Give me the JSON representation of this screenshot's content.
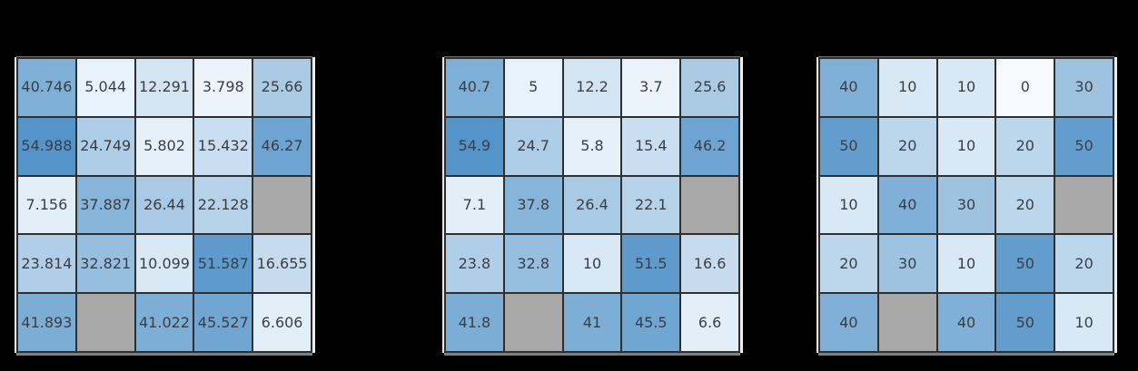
{
  "page": {
    "background": "#000000"
  },
  "colorscale": {
    "min_color": "#f7fbff",
    "max_color": "#5494c8",
    "vmin": 0,
    "vmax": 55,
    "nan_color": "#a8a8a8",
    "gridline_color": "#2f2f2f",
    "text_color": "#3a3e45"
  },
  "heatmaps": [
    {
      "name": "heatmap-precise",
      "cells": [
        [
          "40.746",
          "5.044",
          "12.291",
          "3.798",
          "25.66"
        ],
        [
          "54.988",
          "24.749",
          "5.802",
          "15.432",
          "46.27"
        ],
        [
          "7.156",
          "37.887",
          "26.44",
          "22.128",
          ""
        ],
        [
          "23.814",
          "32.821",
          "10.099",
          "51.587",
          "16.655"
        ],
        [
          "41.893",
          "",
          "41.022",
          "45.527",
          "6.606"
        ]
      ]
    },
    {
      "name": "heatmap-1-decimal",
      "cells": [
        [
          "40.7",
          "5",
          "12.2",
          "3.7",
          "25.6"
        ],
        [
          "54.9",
          "24.7",
          "5.8",
          "15.4",
          "46.2"
        ],
        [
          "7.1",
          "37.8",
          "26.4",
          "22.1",
          ""
        ],
        [
          "23.8",
          "32.8",
          "10",
          "51.5",
          "16.6"
        ],
        [
          "41.8",
          "",
          "41",
          "45.5",
          "6.6"
        ]
      ]
    },
    {
      "name": "heatmap-rounded-tens",
      "cells": [
        [
          "40",
          "10",
          "10",
          "0",
          "30"
        ],
        [
          "50",
          "20",
          "10",
          "20",
          "50"
        ],
        [
          "10",
          "40",
          "30",
          "20",
          ""
        ],
        [
          "20",
          "30",
          "10",
          "50",
          "20"
        ],
        [
          "40",
          "",
          "40",
          "50",
          "10"
        ]
      ]
    }
  ],
  "chart_data": [
    {
      "type": "heatmap",
      "title": "",
      "rows": 5,
      "cols": 5,
      "values": [
        [
          40.746,
          5.044,
          12.291,
          3.798,
          25.66
        ],
        [
          54.988,
          24.749,
          5.802,
          15.432,
          46.27
        ],
        [
          7.156,
          37.887,
          26.44,
          22.128,
          null
        ],
        [
          23.814,
          32.821,
          10.099,
          51.587,
          16.655
        ],
        [
          41.893,
          null,
          41.022,
          45.527,
          6.606
        ]
      ],
      "colormap": "white-to-steelblue (Blues-like)",
      "value_range": [
        0,
        55
      ],
      "missing_cells_color": "#a8a8a8",
      "annotations": "each cell labeled with its value, full precision"
    },
    {
      "type": "heatmap",
      "title": "",
      "rows": 5,
      "cols": 5,
      "values": [
        [
          40.7,
          5,
          12.2,
          3.7,
          25.6
        ],
        [
          54.9,
          24.7,
          5.8,
          15.4,
          46.2
        ],
        [
          7.1,
          37.8,
          26.4,
          22.1,
          null
        ],
        [
          23.8,
          32.8,
          10,
          51.5,
          16.6
        ],
        [
          41.8,
          null,
          41,
          45.5,
          6.6
        ]
      ],
      "colormap": "white-to-steelblue (Blues-like)",
      "value_range": [
        0,
        55
      ],
      "missing_cells_color": "#a8a8a8",
      "annotations": "each cell labeled with its value truncated to 1 decimal"
    },
    {
      "type": "heatmap",
      "title": "",
      "rows": 5,
      "cols": 5,
      "values": [
        [
          40,
          10,
          10,
          0,
          30
        ],
        [
          50,
          20,
          10,
          20,
          50
        ],
        [
          10,
          40,
          30,
          20,
          null
        ],
        [
          20,
          30,
          10,
          50,
          20
        ],
        [
          40,
          null,
          40,
          50,
          10
        ]
      ],
      "colormap": "white-to-steelblue (Blues-like)",
      "value_range": [
        0,
        55
      ],
      "missing_cells_color": "#a8a8a8",
      "annotations": "each cell labeled with its value rounded to nearest ten"
    }
  ]
}
